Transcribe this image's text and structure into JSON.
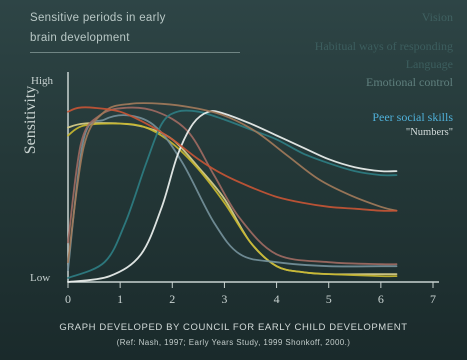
{
  "title_line1": "Sensitive periods in early",
  "title_line2": "brain development",
  "footer_line1": "GRAPH DEVELOPED BY COUNCIL FOR EARLY CHILD DEVELOPMENT",
  "footer_line2": "(Ref: Nash, 1997; Early Years Study, 1999 Shonkoff, 2000.)",
  "legend": [
    {
      "label": "Vision",
      "color": "#3f6161"
    },
    {
      "label": "Habitual ways of responding",
      "color": "#3c5e5e"
    },
    {
      "label": "Language",
      "color": "#3c5e5e"
    },
    {
      "label": "Emotional control",
      "color": "#5f7f7d"
    },
    {
      "label": "Peer social skills",
      "color": "#4fb0d8"
    },
    {
      "label": "\"Numbers\"",
      "color": "#d3dbda"
    }
  ],
  "chart_data": {
    "type": "line",
    "ylabel": "Sensitivity",
    "ytick_high": "High",
    "ytick_low": "Low",
    "x_ticks": [
      0,
      1,
      2,
      3,
      4,
      5,
      6,
      7
    ],
    "xlim": [
      0,
      7
    ],
    "ylim": [
      0,
      1
    ],
    "series": [
      {
        "color": "#d9cf8a",
        "x": [
          0,
          0.3,
          1,
          1.5,
          2,
          2.5,
          3,
          3.5,
          4,
          4.5,
          5,
          6,
          6.3
        ],
        "y": [
          0.78,
          0.8,
          0.8,
          0.78,
          0.72,
          0.58,
          0.42,
          0.2,
          0.08,
          0.05,
          0.04,
          0.04,
          0.04
        ]
      },
      {
        "color": "#c8b830",
        "x": [
          0,
          0.3,
          1,
          1.5,
          2,
          2.5,
          3,
          3.5,
          4,
          4.5,
          5,
          6,
          6.3
        ],
        "y": [
          0.74,
          0.79,
          0.8,
          0.78,
          0.7,
          0.57,
          0.4,
          0.2,
          0.08,
          0.05,
          0.04,
          0.03,
          0.03
        ]
      },
      {
        "color": "#74909a",
        "x": [
          0,
          0.3,
          0.7,
          1.2,
          1.7,
          2.2,
          2.8,
          3.3,
          4,
          5,
          6,
          6.3
        ],
        "y": [
          0.06,
          0.72,
          0.82,
          0.84,
          0.78,
          0.6,
          0.3,
          0.14,
          0.1,
          0.08,
          0.08,
          0.08
        ]
      },
      {
        "color": "#9e6a62",
        "x": [
          0,
          0.25,
          0.6,
          1.1,
          1.7,
          2.3,
          2.8,
          3.3,
          4,
          5,
          6,
          6.3
        ],
        "y": [
          0.2,
          0.7,
          0.84,
          0.88,
          0.86,
          0.76,
          0.54,
          0.32,
          0.14,
          0.1,
          0.09,
          0.09
        ]
      },
      {
        "color": "#2e7d82",
        "x": [
          0,
          0.7,
          1.1,
          1.5,
          1.8,
          2.1,
          2.5,
          3,
          3.5,
          4,
          4.5,
          5,
          5.5,
          6,
          6.3
        ],
        "y": [
          0.02,
          0.1,
          0.3,
          0.6,
          0.8,
          0.86,
          0.86,
          0.82,
          0.77,
          0.72,
          0.65,
          0.6,
          0.56,
          0.54,
          0.54
        ]
      },
      {
        "color": "#eef2f0",
        "x": [
          0,
          0.8,
          1.4,
          1.8,
          2.1,
          2.4,
          2.7,
          3,
          3.5,
          4,
          4.5,
          5,
          5.5,
          6,
          6.3
        ],
        "y": [
          0.0,
          0.03,
          0.14,
          0.38,
          0.64,
          0.8,
          0.86,
          0.85,
          0.8,
          0.74,
          0.68,
          0.62,
          0.58,
          0.56,
          0.56
        ]
      },
      {
        "color": "#a17a5a",
        "x": [
          0,
          0.3,
          0.7,
          1.2,
          1.8,
          2.4,
          3,
          3.6,
          4.2,
          4.8,
          5.4,
          6,
          6.3
        ],
        "y": [
          0.1,
          0.68,
          0.86,
          0.9,
          0.9,
          0.88,
          0.84,
          0.76,
          0.64,
          0.52,
          0.44,
          0.38,
          0.36
        ]
      },
      {
        "color": "#c65535",
        "x": [
          0,
          0.2,
          0.5,
          1,
          1.5,
          2,
          2.5,
          3,
          3.5,
          4,
          4.5,
          5,
          5.5,
          6,
          6.3
        ],
        "y": [
          0.86,
          0.88,
          0.88,
          0.86,
          0.8,
          0.72,
          0.62,
          0.54,
          0.48,
          0.43,
          0.4,
          0.38,
          0.37,
          0.36,
          0.36
        ]
      }
    ]
  }
}
